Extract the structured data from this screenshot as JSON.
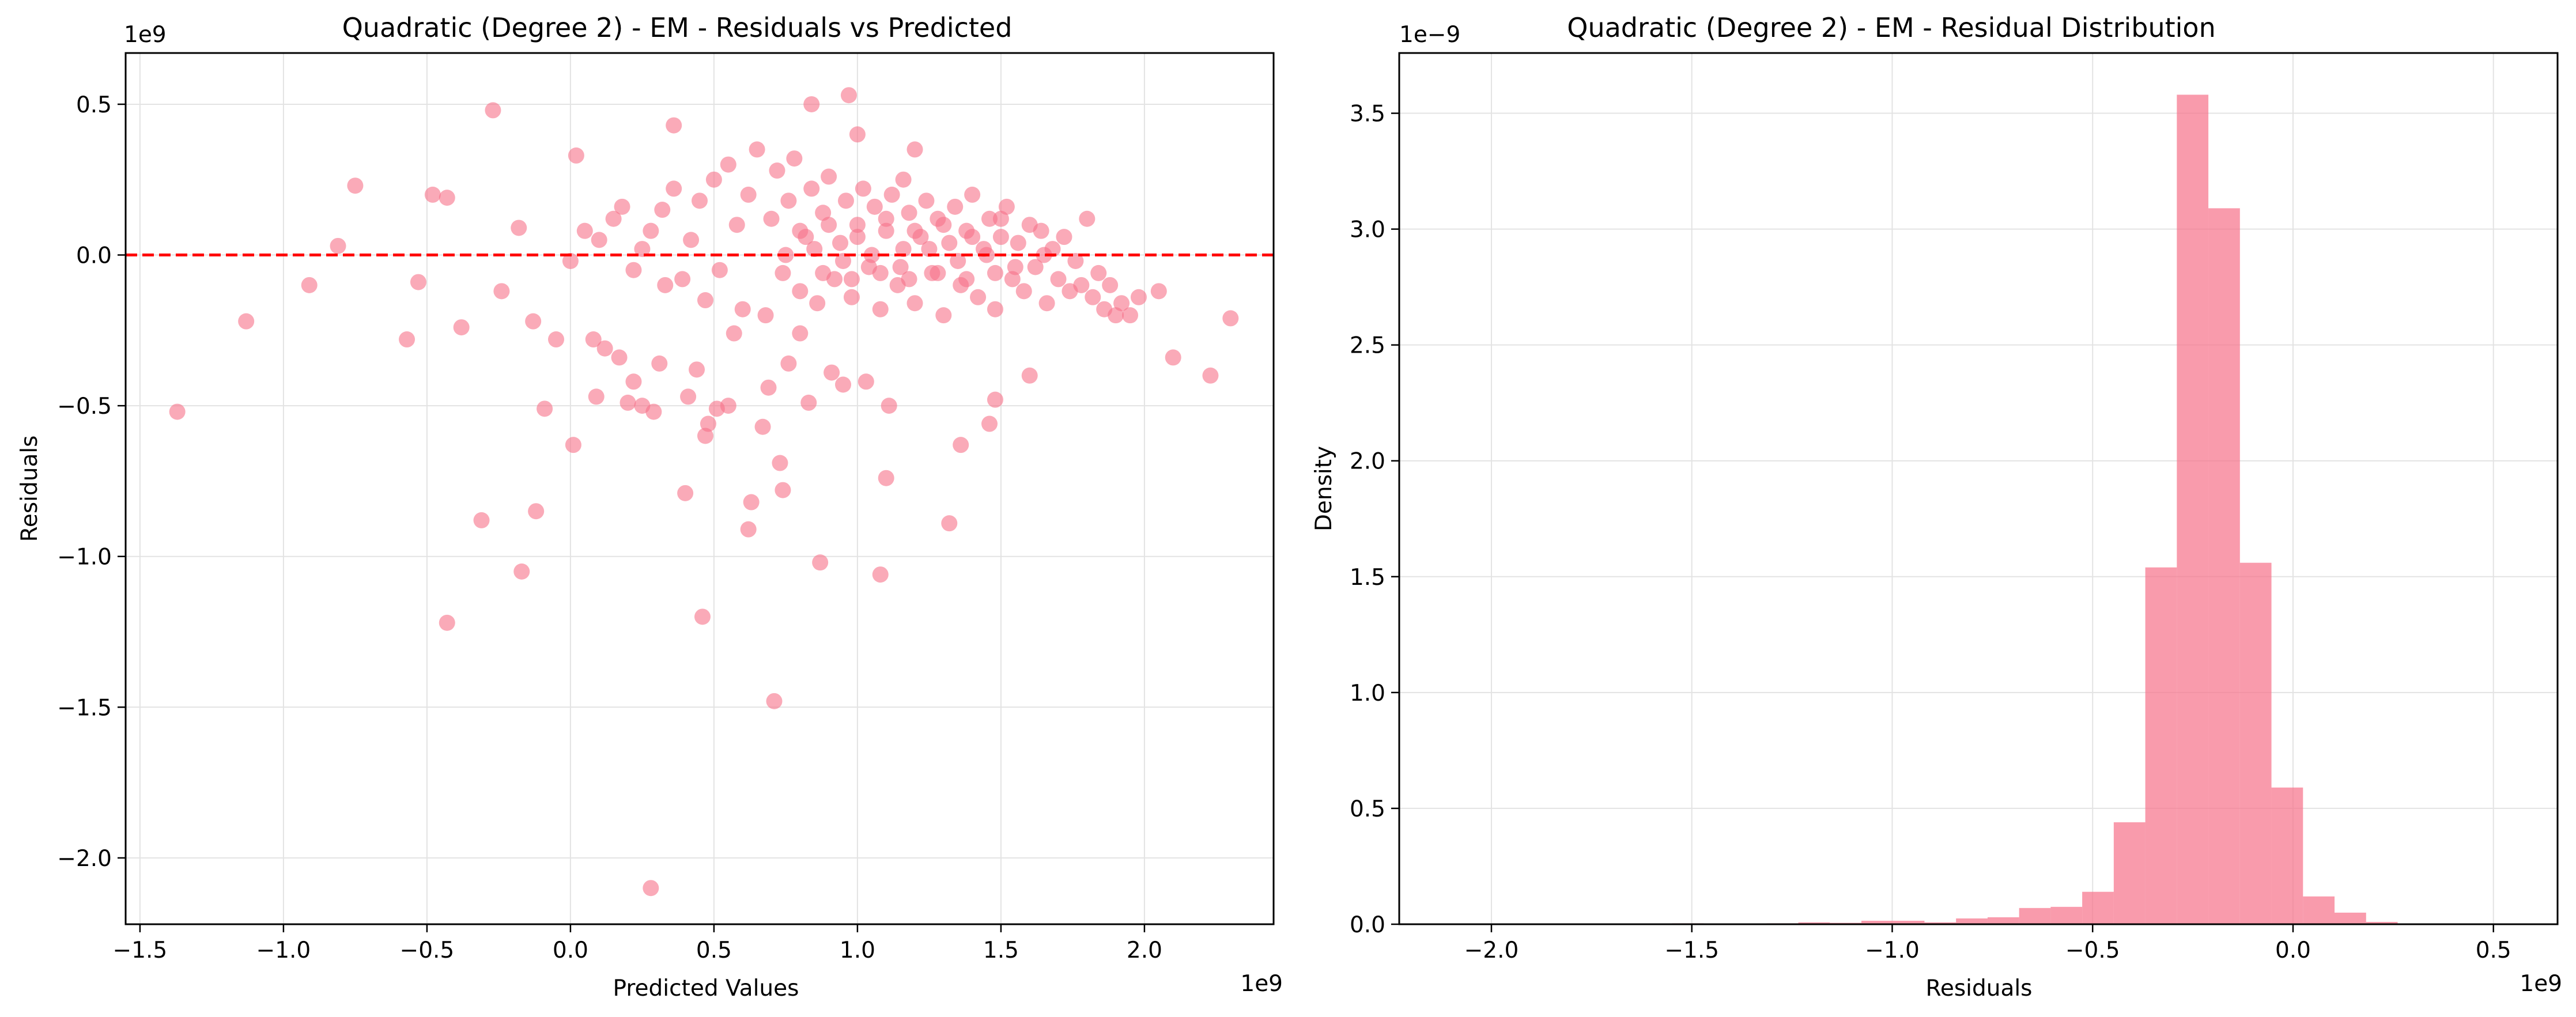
{
  "colors": {
    "series": "#f77189",
    "zero_line": "#ff0000",
    "grid": "#e3e3e3",
    "axes": "#000000"
  },
  "chart_data": [
    {
      "type": "scatter",
      "title": "Quadratic (Degree 2) - EM - Residuals vs Predicted",
      "xlabel": "Predicted Values",
      "ylabel": "Residuals",
      "x_offset_label": "1e9",
      "y_offset_label": "1e9",
      "xlim": [
        -1.55,
        2.45
      ],
      "ylim": [
        -2.22,
        0.67
      ],
      "xticks": [
        -1.5,
        -1.0,
        -0.5,
        0.0,
        0.5,
        1.0,
        1.5,
        2.0
      ],
      "xtick_labels": [
        "−1.5",
        "−1.0",
        "−0.5",
        "0.0",
        "0.5",
        "1.0",
        "1.5",
        "2.0"
      ],
      "yticks": [
        -2.0,
        -1.5,
        -1.0,
        -0.5,
        0.0,
        0.5
      ],
      "ytick_labels": [
        "−2.0",
        "−1.5",
        "−1.0",
        "−0.5",
        "0.0",
        "0.5"
      ],
      "grid": true,
      "reference_line": {
        "y": 0,
        "style": "dashed"
      },
      "marker_alpha": 0.6,
      "points": [
        [
          -1.37,
          -0.52
        ],
        [
          -1.13,
          -0.22
        ],
        [
          -0.91,
          -0.1
        ],
        [
          -0.81,
          0.03
        ],
        [
          -0.75,
          0.23
        ],
        [
          -0.57,
          -0.28
        ],
        [
          -0.53,
          -0.09
        ],
        [
          -0.48,
          0.2
        ],
        [
          -0.43,
          0.19
        ],
        [
          -0.43,
          -1.22
        ],
        [
          -0.38,
          -0.24
        ],
        [
          -0.31,
          -0.88
        ],
        [
          -0.27,
          0.48
        ],
        [
          -0.24,
          -0.12
        ],
        [
          -0.18,
          0.09
        ],
        [
          -0.17,
          -1.05
        ],
        [
          -0.13,
          -0.22
        ],
        [
          -0.12,
          -0.85
        ],
        [
          -0.09,
          -0.51
        ],
        [
          -0.05,
          -0.28
        ],
        [
          0.0,
          -0.02
        ],
        [
          0.01,
          -0.63
        ],
        [
          0.02,
          0.33
        ],
        [
          0.05,
          0.08
        ],
        [
          0.08,
          -0.28
        ],
        [
          0.09,
          -0.47
        ],
        [
          0.12,
          -0.31
        ],
        [
          0.17,
          -0.34
        ],
        [
          0.2,
          -0.49
        ],
        [
          0.22,
          -0.42
        ],
        [
          0.25,
          -0.5
        ],
        [
          0.28,
          -2.1
        ],
        [
          0.29,
          -0.52
        ],
        [
          0.31,
          -0.36
        ],
        [
          0.36,
          0.43
        ],
        [
          0.4,
          -0.79
        ],
        [
          0.41,
          -0.47
        ],
        [
          0.44,
          -0.38
        ],
        [
          0.46,
          -1.2
        ],
        [
          0.47,
          -0.6
        ],
        [
          0.48,
          -0.56
        ],
        [
          0.51,
          -0.51
        ],
        [
          0.55,
          -0.5
        ],
        [
          0.57,
          -0.26
        ],
        [
          0.62,
          -0.91
        ],
        [
          0.63,
          -0.82
        ],
        [
          0.67,
          -0.57
        ],
        [
          0.69,
          -0.44
        ],
        [
          0.71,
          -1.48
        ],
        [
          0.73,
          -0.69
        ],
        [
          0.74,
          -0.78
        ],
        [
          0.76,
          -0.36
        ],
        [
          0.8,
          -0.26
        ],
        [
          0.83,
          -0.49
        ],
        [
          0.84,
          0.5
        ],
        [
          0.87,
          -1.02
        ],
        [
          0.91,
          -0.39
        ],
        [
          0.95,
          -0.43
        ],
        [
          0.97,
          0.53
        ],
        [
          1.0,
          0.4
        ],
        [
          1.03,
          -0.42
        ],
        [
          1.08,
          -1.06
        ],
        [
          1.1,
          -0.74
        ],
        [
          1.11,
          -0.5
        ],
        [
          1.16,
          0.25
        ],
        [
          1.2,
          0.35
        ],
        [
          1.32,
          -0.89
        ],
        [
          1.36,
          -0.63
        ],
        [
          1.46,
          -0.56
        ],
        [
          1.48,
          -0.48
        ],
        [
          1.6,
          -0.4
        ],
        [
          2.05,
          -0.12
        ],
        [
          2.1,
          -0.34
        ],
        [
          2.23,
          -0.4
        ],
        [
          2.3,
          -0.21
        ],
        [
          0.1,
          0.05
        ],
        [
          0.15,
          0.12
        ],
        [
          0.18,
          0.16
        ],
        [
          0.22,
          -0.05
        ],
        [
          0.25,
          0.02
        ],
        [
          0.28,
          0.08
        ],
        [
          0.32,
          0.15
        ],
        [
          0.33,
          -0.1
        ],
        [
          0.36,
          0.22
        ],
        [
          0.39,
          -0.08
        ],
        [
          0.42,
          0.05
        ],
        [
          0.45,
          0.18
        ],
        [
          0.47,
          -0.15
        ],
        [
          0.5,
          0.25
        ],
        [
          0.52,
          -0.05
        ],
        [
          0.55,
          0.3
        ],
        [
          0.58,
          0.1
        ],
        [
          0.6,
          -0.18
        ],
        [
          0.62,
          0.2
        ],
        [
          0.65,
          0.35
        ],
        [
          0.68,
          -0.2
        ],
        [
          0.7,
          0.12
        ],
        [
          0.72,
          0.28
        ],
        [
          0.74,
          -0.06
        ],
        [
          0.76,
          0.18
        ],
        [
          0.78,
          0.32
        ],
        [
          0.8,
          -0.12
        ],
        [
          0.82,
          0.06
        ],
        [
          0.84,
          0.22
        ],
        [
          0.86,
          -0.16
        ],
        [
          0.88,
          0.14
        ],
        [
          0.9,
          0.26
        ],
        [
          0.92,
          -0.08
        ],
        [
          0.94,
          0.04
        ],
        [
          0.96,
          0.18
        ],
        [
          0.98,
          -0.14
        ],
        [
          1.0,
          0.1
        ],
        [
          1.02,
          0.22
        ],
        [
          1.04,
          -0.04
        ],
        [
          1.06,
          0.16
        ],
        [
          1.08,
          -0.18
        ],
        [
          1.1,
          0.08
        ],
        [
          1.12,
          0.2
        ],
        [
          1.14,
          -0.1
        ],
        [
          1.16,
          0.02
        ],
        [
          1.18,
          0.14
        ],
        [
          1.2,
          -0.16
        ],
        [
          1.22,
          0.06
        ],
        [
          1.24,
          0.18
        ],
        [
          1.26,
          -0.06
        ],
        [
          1.28,
          0.12
        ],
        [
          1.3,
          -0.2
        ],
        [
          1.32,
          0.04
        ],
        [
          1.34,
          0.16
        ],
        [
          1.36,
          -0.1
        ],
        [
          1.38,
          0.08
        ],
        [
          1.4,
          0.2
        ],
        [
          1.42,
          -0.14
        ],
        [
          1.44,
          0.02
        ],
        [
          1.46,
          0.12
        ],
        [
          1.48,
          -0.18
        ],
        [
          1.5,
          0.06
        ],
        [
          1.52,
          0.16
        ],
        [
          1.54,
          -0.08
        ],
        [
          1.56,
          0.04
        ],
        [
          1.58,
          -0.12
        ],
        [
          1.6,
          0.1
        ],
        [
          1.62,
          -0.04
        ],
        [
          1.64,
          0.08
        ],
        [
          1.66,
          -0.16
        ],
        [
          1.68,
          0.02
        ],
        [
          1.7,
          -0.08
        ],
        [
          1.72,
          0.06
        ],
        [
          1.74,
          -0.12
        ],
        [
          1.76,
          -0.02
        ],
        [
          1.78,
          -0.1
        ],
        [
          1.8,
          0.12
        ],
        [
          1.82,
          -0.14
        ],
        [
          1.84,
          -0.06
        ],
        [
          1.86,
          -0.18
        ],
        [
          1.88,
          -0.1
        ],
        [
          1.9,
          -0.2
        ],
        [
          1.92,
          -0.16
        ],
        [
          1.95,
          -0.2
        ],
        [
          1.98,
          -0.14
        ],
        [
          0.75,
          0.0
        ],
        [
          0.85,
          0.02
        ],
        [
          0.95,
          -0.02
        ],
        [
          1.05,
          0.0
        ],
        [
          1.15,
          -0.04
        ],
        [
          1.25,
          0.02
        ],
        [
          1.35,
          -0.02
        ],
        [
          1.45,
          0.0
        ],
        [
          1.55,
          -0.04
        ],
        [
          1.65,
          0.0
        ],
        [
          0.8,
          0.08
        ],
        [
          0.9,
          0.1
        ],
        [
          1.0,
          0.06
        ],
        [
          1.1,
          0.12
        ],
        [
          1.2,
          0.08
        ],
        [
          1.3,
          0.1
        ],
        [
          1.4,
          0.06
        ],
        [
          1.5,
          0.12
        ],
        [
          0.88,
          -0.06
        ],
        [
          0.98,
          -0.08
        ],
        [
          1.08,
          -0.06
        ],
        [
          1.18,
          -0.08
        ],
        [
          1.28,
          -0.06
        ],
        [
          1.38,
          -0.08
        ],
        [
          1.48,
          -0.06
        ]
      ]
    },
    {
      "type": "bar",
      "subtype": "histogram",
      "title": "Quadratic (Degree 2) - EM - Residual Distribution",
      "xlabel": "Residuals",
      "ylabel": "Density",
      "x_offset_label": "1e9",
      "y_offset_label": "1e−9",
      "xlim": [
        -2.23,
        0.66
      ],
      "ylim": [
        0,
        3.76
      ],
      "xticks": [
        -2.0,
        -1.5,
        -1.0,
        -0.5,
        0.0,
        0.5
      ],
      "xtick_labels": [
        "−2.0",
        "−1.5",
        "−1.0",
        "−0.5",
        "0.0",
        "0.5"
      ],
      "yticks": [
        0.0,
        0.5,
        1.0,
        1.5,
        2.0,
        2.5,
        3.0,
        3.5
      ],
      "ytick_labels": [
        "0.0",
        "0.5",
        "1.0",
        "1.5",
        "2.0",
        "2.5",
        "3.0",
        "3.5"
      ],
      "grid": true,
      "bar_alpha": 0.7,
      "bin_start": -2.1,
      "bin_width": 0.0787,
      "values": [
        0.003,
        0.0,
        0.0,
        0.0,
        0.0,
        0.0,
        0.002,
        0.004,
        0.0,
        0.0,
        0.004,
        0.008,
        0.006,
        0.015,
        0.015,
        0.008,
        0.025,
        0.03,
        0.07,
        0.075,
        0.14,
        0.44,
        1.54,
        3.58,
        3.09,
        1.56,
        0.59,
        0.12,
        0.05,
        0.01
      ]
    }
  ]
}
